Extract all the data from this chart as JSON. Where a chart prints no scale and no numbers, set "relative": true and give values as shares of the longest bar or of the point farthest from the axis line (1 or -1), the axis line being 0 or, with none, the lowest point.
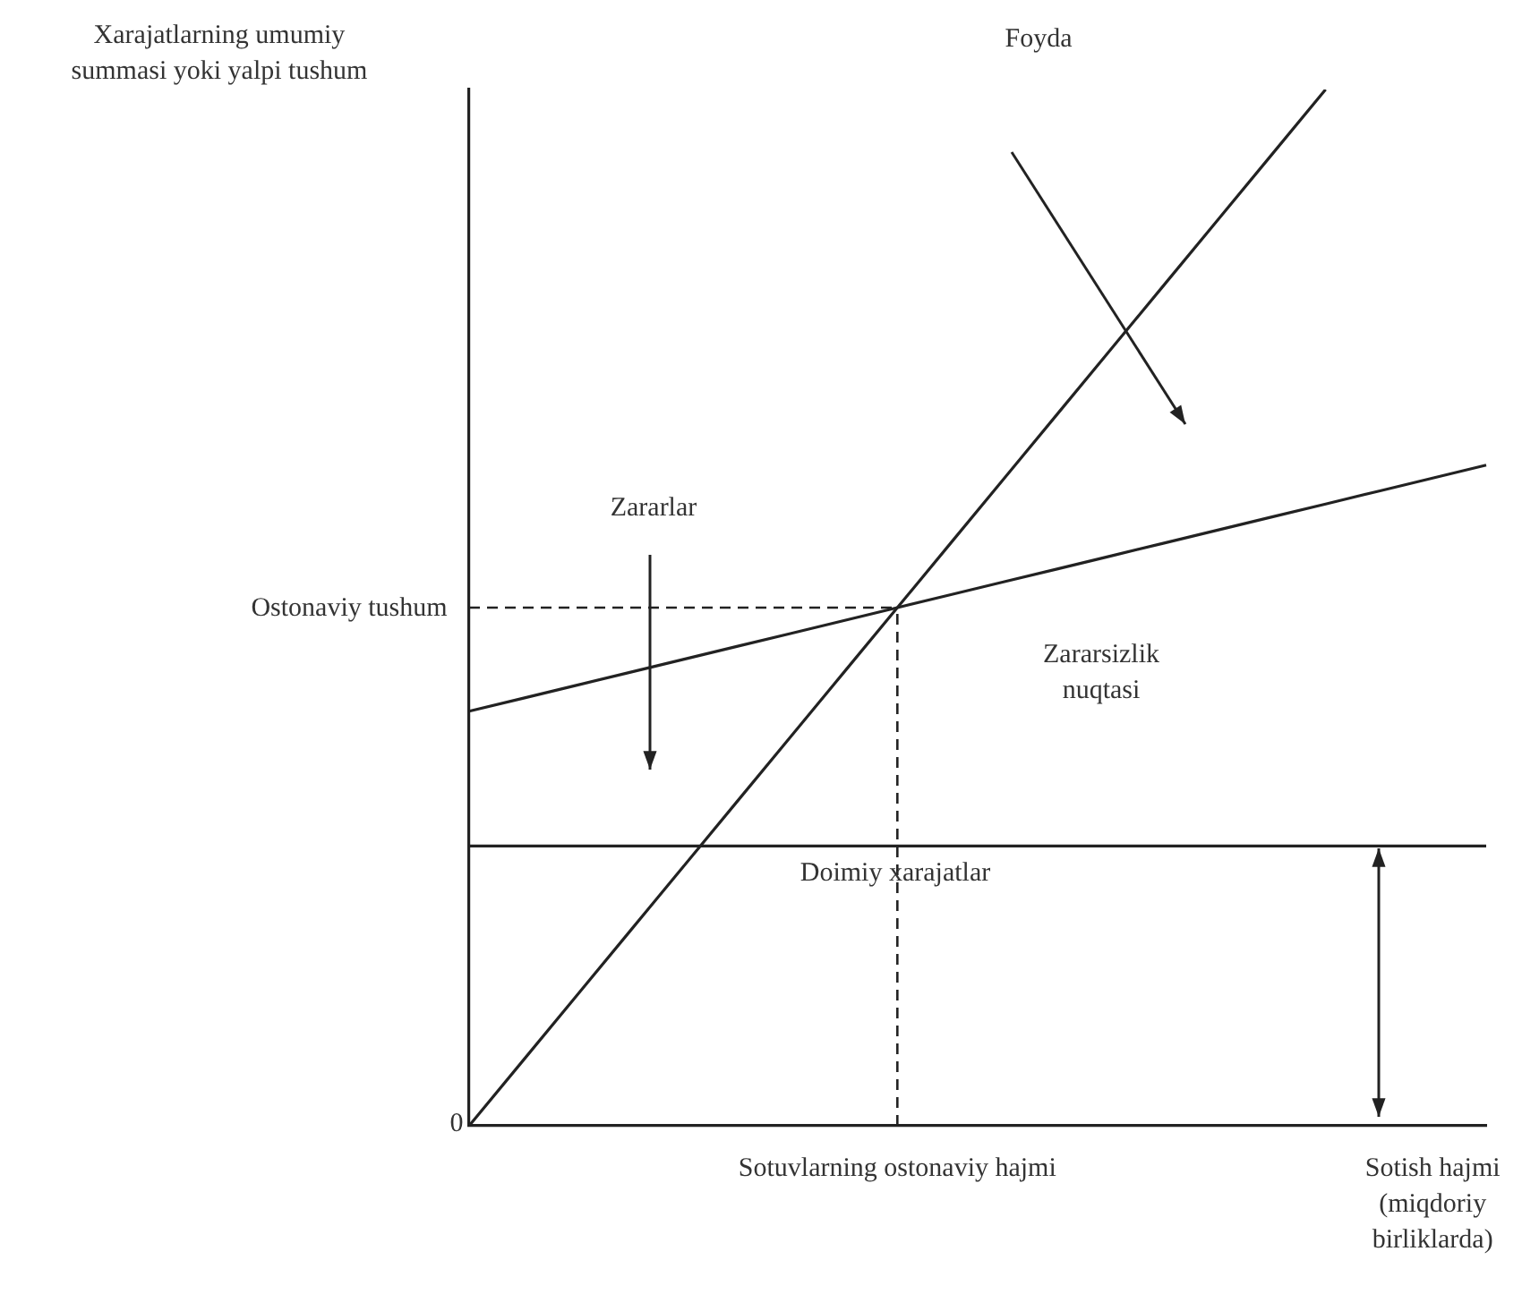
{
  "chart_data": {
    "type": "line",
    "relative": true,
    "ylabel": "Xarajatlarning umumiy summasi yoki yalpi tushum",
    "categories": [
      null,
      null,
      null,
      null,
      null,
      null,
      null,
      null,
      "Sotuvlarning ostonaviy hajmi",
      null,
      null,
      null,
      null,
      null,
      null,
      null,
      null,
      null,
      "Sotish hajmi (miqdoriy birliklarda)",
      null
    ],
    "series": [
      {
        "color": "#222222",
        "values": [
          0,
          0.0625,
          0.125,
          0.1875,
          0.25,
          0.3125,
          0.375,
          0.4375,
          0.5,
          0.5625,
          0.625,
          0.6875,
          0.75,
          0.8125,
          0.875,
          0.9375,
          1,
          null,
          null,
          null
        ]
      },
      {
        "color": "#222222",
        "values": [
          0.4,
          0.4125,
          0.425,
          0.4375,
          0.45,
          0.4625,
          0.475,
          0.4875,
          0.5,
          0.5125,
          0.525,
          0.5375,
          0.55,
          0.5625,
          0.575,
          0.5875,
          0.6,
          0.6125,
          0.625,
          0.6375
        ]
      },
      {
        "color": "#222222",
        "values": [
          0.27,
          0.27,
          0.27,
          0.27,
          0.27,
          0.27,
          0.27,
          0.27,
          0.27,
          0.27,
          0.27,
          0.27,
          0.27,
          0.27,
          0.27,
          0.27,
          0.27,
          0.27,
          0.27,
          0.27
        ]
      }
    ],
    "ref_lines": [
      {
        "axis": "x",
        "value": "Sotuvlarning ostonaviy hajmi",
        "line_style": "dashed",
        "color": "#222222"
      },
      {
        "axis": "y",
        "value": 0.5,
        "line_style": "dashed",
        "color": "#222222"
      }
    ],
    "annotations": [
      "Foyda",
      "Zararlar",
      "Ostonaviy tushum",
      "Zararsizlik nuqtasi",
      "Doimiy xarajatlar",
      "0"
    ],
    "legend": false,
    "grid": false,
    "marker": "none",
    "line_style": "solid"
  }
}
